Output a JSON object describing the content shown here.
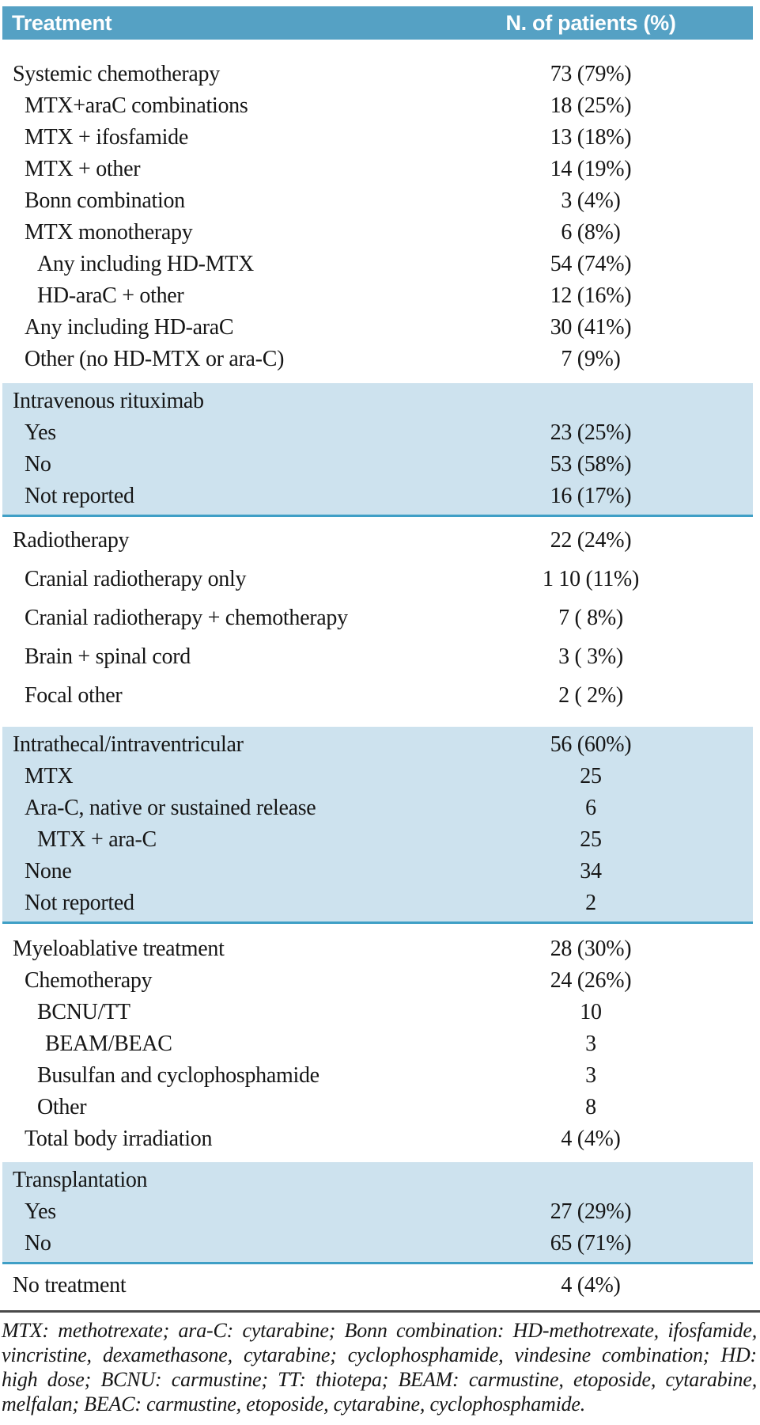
{
  "table": {
    "columns": {
      "treatment": "Treatment",
      "patients": "N. of patients (%)"
    },
    "sections": [
      {
        "shaded": false,
        "rows": [
          {
            "label": "Systemic chemotherapy",
            "value": "73 (79%)",
            "indent": 0
          },
          {
            "label": "MTX+araC combinations",
            "value": "18 (25%)",
            "indent": 1
          },
          {
            "label": "MTX + ifosfamide",
            "value": "13 (18%)",
            "indent": 1
          },
          {
            "label": "MTX + other",
            "value": "14 (19%)",
            "indent": 1
          },
          {
            "label": "Bonn combination",
            "value": "3 (4%)",
            "indent": 1
          },
          {
            "label": "MTX monotherapy",
            "value": "6 (8%)",
            "indent": 1
          },
          {
            "label": "Any including HD-MTX",
            "value": "54 (74%)",
            "indent": 2
          },
          {
            "label": "HD-araC + other",
            "value": "12 (16%)",
            "indent": 2
          },
          {
            "label": "Any including HD-araC",
            "value": "30 (41%)",
            "indent": 1
          },
          {
            "label": "Other (no HD-MTX or ara-C)",
            "value": "7 (9%)",
            "indent": 1
          }
        ]
      },
      {
        "shaded": true,
        "rows": [
          {
            "label": "Intravenous rituximab",
            "value": "",
            "indent": 0
          },
          {
            "label": "Yes",
            "value": "23 (25%)",
            "indent": 1
          },
          {
            "label": "No",
            "value": "53 (58%)",
            "indent": 1
          },
          {
            "label": "Not reported",
            "value": "16 (17%)",
            "indent": 1
          }
        ]
      },
      {
        "shaded": false,
        "rows": [
          {
            "label": "Radiotherapy",
            "value": "22 (24%)",
            "indent": 0
          },
          {
            "label": "Cranial radiotherapy only",
            "value": "1 10 (11%)",
            "indent": 1
          },
          {
            "label": "Cranial radiotherapy + chemotherapy",
            "value": "7 ( 8%)",
            "indent": 1
          },
          {
            "label": "Brain + spinal cord",
            "value": "3 ( 3%)",
            "indent": 1
          },
          {
            "label": "Focal other",
            "value": "2 ( 2%)",
            "indent": 1
          }
        ]
      },
      {
        "shaded": true,
        "rows": [
          {
            "label": "Intrathecal/intraventricular",
            "value": "56 (60%)",
            "indent": 0
          },
          {
            "label": "MTX",
            "value": "25",
            "indent": 1
          },
          {
            "label": "Ara-C, native or sustained release",
            "value": "6",
            "indent": 1
          },
          {
            "label": "MTX + ara-C",
            "value": "25",
            "indent": 2
          },
          {
            "label": "None",
            "value": "34",
            "indent": 1
          },
          {
            "label": "Not reported",
            "value": "2",
            "indent": 1
          }
        ]
      },
      {
        "shaded": false,
        "rows": [
          {
            "label": "Myeloablative treatment",
            "value": "28 (30%)",
            "indent": 0
          },
          {
            "label": "Chemotherapy",
            "value": "24 (26%)",
            "indent": 1
          },
          {
            "label": "BCNU/TT",
            "value": "10",
            "indent": 2
          },
          {
            "label": "BEAM/BEAC",
            "value": "3",
            "indent": 3
          },
          {
            "label": "Busulfan and cyclophosphamide",
            "value": "3",
            "indent": 2
          },
          {
            "label": "Other",
            "value": "8",
            "indent": 2
          },
          {
            "label": "Total body irradiation",
            "value": "4 (4%)",
            "indent": 1
          }
        ]
      },
      {
        "shaded": true,
        "rows": [
          {
            "label": "Transplantation",
            "value": "",
            "indent": 0
          },
          {
            "label": "Yes",
            "value": "27 (29%)",
            "indent": 1
          },
          {
            "label": "No",
            "value": "65 (71%)",
            "indent": 1
          }
        ]
      },
      {
        "shaded": false,
        "rows": [
          {
            "label": "No treatment",
            "value": "4 (4%)",
            "indent": 0
          }
        ]
      }
    ]
  },
  "footnote": "MTX: methotrexate; ara-C: cytarabine; Bonn combination: HD-methotrexate, ifosfamide, vincristine, dexamethasone, cytarabine; cyclophosphamide, vindesine combination; HD: high dose; BCNU: carmustine; TT: thiotepa; BEAM: carmustine, etoposide, cytarabine, melfalan; BEAC: carmustine, etoposide, cytarabine, cyclophosphamide.",
  "colors": {
    "header_bg": "#55a1c4",
    "header_text": "#ffffff",
    "shaded_band_bg": "#cde2ee",
    "shaded_band_border": "#3f9fc6",
    "footnote_rule": "#4a4a4a",
    "body_text": "#161616"
  }
}
